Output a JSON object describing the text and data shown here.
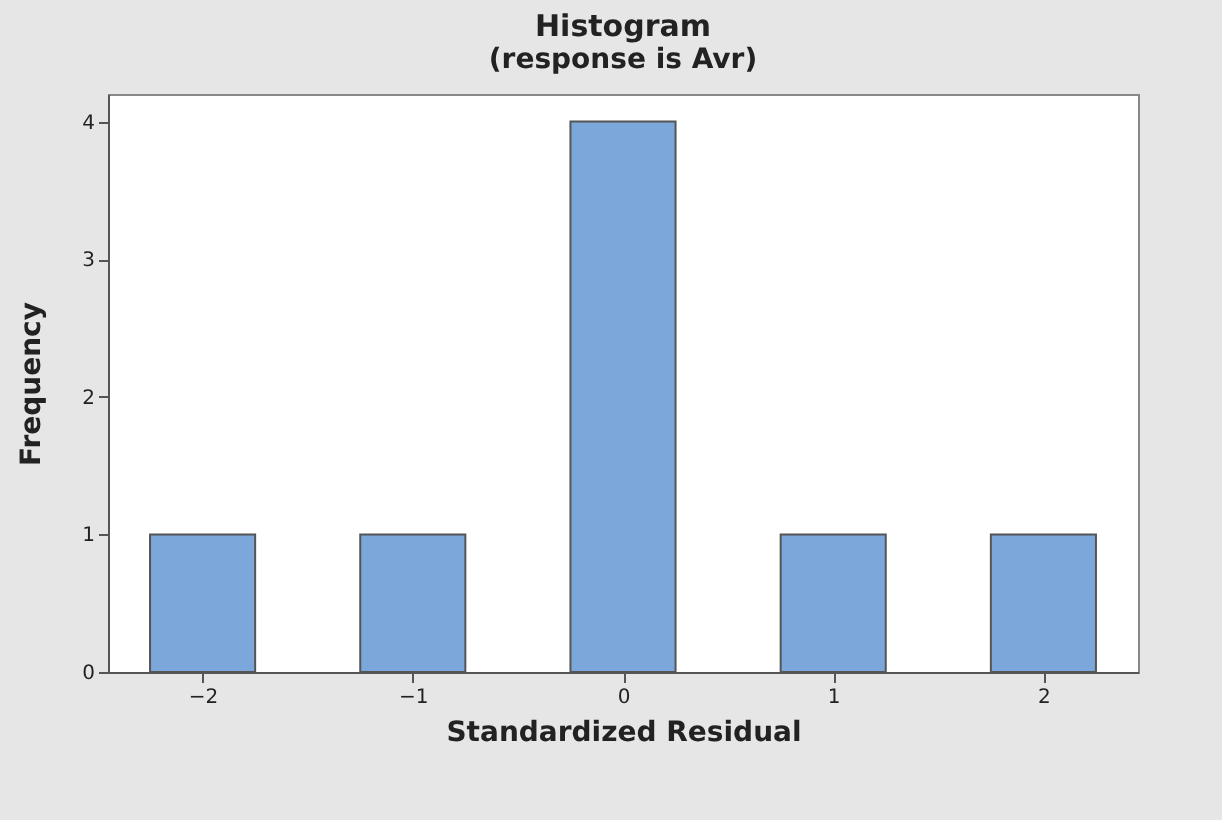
{
  "chart_data": {
    "type": "bar",
    "title": "Histogram",
    "subtitle": "(response is Avr)",
    "xlabel": "Standardized Residual",
    "ylabel": "Frequency",
    "x": [
      -2,
      -1,
      0,
      1,
      2
    ],
    "values": [
      1,
      1,
      4,
      1,
      1
    ],
    "color": "#7ba7db",
    "xlim": [
      -2.45,
      2.45
    ],
    "xticks": [
      -2,
      -1,
      0,
      1,
      2
    ],
    "ylim": [
      0,
      4.2
    ],
    "yticks": [
      0,
      1,
      2,
      3,
      4
    ],
    "grid": false,
    "legend": false
  }
}
